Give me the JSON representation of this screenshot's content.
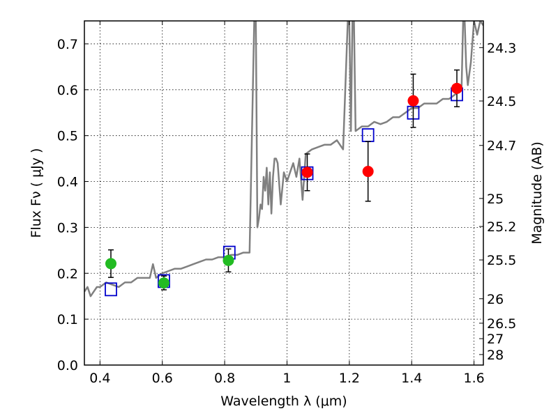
{
  "chart_data": {
    "type": "scatter",
    "title": "",
    "xlabel": "Wavelength  λ (μm)",
    "ylabel": "Flux  Fν  ( μJy )",
    "y2label": "Magnitude (AB)",
    "xlim": [
      0.35,
      1.63
    ],
    "ylim": [
      0.0,
      0.75
    ],
    "grid": true,
    "x_ticks": [
      "0.4",
      "0.6",
      "0.8",
      "1",
      "1.2",
      "1.4",
      "1.6"
    ],
    "x_tick_values": [
      0.4,
      0.6,
      0.8,
      1.0,
      1.2,
      1.4,
      1.6
    ],
    "y_ticks": [
      "0.0",
      "0.1",
      "0.2",
      "0.3",
      "0.4",
      "0.5",
      "0.6",
      "0.7"
    ],
    "y_tick_values": [
      0.0,
      0.1,
      0.2,
      0.3,
      0.4,
      0.5,
      0.6,
      0.7
    ],
    "y2_ticks": [
      "24.3",
      "24.5",
      "24.7",
      "25",
      "25.2",
      "25.5",
      "26",
      "26.5",
      "27",
      "28"
    ],
    "y2_tick_values": [
      24.3,
      24.5,
      24.7,
      25.0,
      25.2,
      25.5,
      26.0,
      26.5,
      27.0,
      28.0
    ],
    "series": [
      {
        "kind": "line",
        "color": "#808080",
        "x": [
          0.35,
          0.36,
          0.37,
          0.38,
          0.39,
          0.4,
          0.42,
          0.44,
          0.46,
          0.48,
          0.5,
          0.52,
          0.54,
          0.56,
          0.57,
          0.58,
          0.6,
          0.62,
          0.64,
          0.66,
          0.68,
          0.7,
          0.72,
          0.74,
          0.76,
          0.78,
          0.8,
          0.82,
          0.84,
          0.86,
          0.88,
          0.895,
          0.9,
          0.905,
          0.91,
          0.915,
          0.92,
          0.925,
          0.93,
          0.935,
          0.94,
          0.945,
          0.95,
          0.955,
          0.96,
          0.965,
          0.97,
          0.98,
          0.99,
          1.0,
          1.01,
          1.02,
          1.03,
          1.04,
          1.05,
          1.06,
          1.08,
          1.1,
          1.12,
          1.14,
          1.16,
          1.18,
          1.195,
          1.2,
          1.205,
          1.21,
          1.215,
          1.22,
          1.24,
          1.26,
          1.28,
          1.3,
          1.32,
          1.34,
          1.36,
          1.38,
          1.4,
          1.42,
          1.44,
          1.46,
          1.48,
          1.5,
          1.52,
          1.54,
          1.56,
          1.565,
          1.57,
          1.575,
          1.58,
          1.59,
          1.6,
          1.61,
          1.62,
          1.63
        ],
        "y": [
          0.16,
          0.17,
          0.15,
          0.16,
          0.17,
          0.17,
          0.18,
          0.175,
          0.17,
          0.18,
          0.18,
          0.19,
          0.19,
          0.19,
          0.22,
          0.19,
          0.2,
          0.205,
          0.21,
          0.21,
          0.215,
          0.22,
          0.225,
          0.23,
          0.23,
          0.235,
          0.235,
          0.24,
          0.24,
          0.245,
          0.245,
          0.75,
          0.75,
          0.3,
          0.32,
          0.35,
          0.34,
          0.41,
          0.38,
          0.43,
          0.35,
          0.42,
          0.33,
          0.41,
          0.45,
          0.45,
          0.44,
          0.35,
          0.42,
          0.4,
          0.42,
          0.44,
          0.41,
          0.45,
          0.36,
          0.46,
          0.47,
          0.475,
          0.48,
          0.48,
          0.49,
          0.47,
          0.75,
          0.75,
          0.51,
          0.75,
          0.75,
          0.51,
          0.52,
          0.52,
          0.53,
          0.525,
          0.53,
          0.54,
          0.54,
          0.55,
          0.56,
          0.56,
          0.57,
          0.57,
          0.57,
          0.58,
          0.58,
          0.59,
          0.6,
          0.75,
          0.75,
          0.65,
          0.61,
          0.66,
          0.75,
          0.72,
          0.75,
          0.74
        ]
      },
      {
        "kind": "marker",
        "marker": "square",
        "color": "#0000cc",
        "x": [
          0.435,
          0.605,
          0.815,
          1.065,
          1.26,
          1.405,
          1.545
        ],
        "y": [
          0.165,
          0.183,
          0.245,
          0.418,
          0.501,
          0.55,
          0.59
        ]
      },
      {
        "kind": "marker",
        "marker": "circle",
        "color": "#22bb22",
        "x": [
          0.435,
          0.605,
          0.812
        ],
        "y": [
          0.221,
          0.179,
          0.228
        ],
        "yerr_low": [
          0.03,
          0.015,
          0.025
        ],
        "yerr_high": [
          0.03,
          0.015,
          0.025
        ]
      },
      {
        "kind": "marker",
        "marker": "circle",
        "color": "#ff0000",
        "x": [
          1.065,
          1.26,
          1.405,
          1.545
        ],
        "y": [
          0.42,
          0.422,
          0.576,
          0.603
        ],
        "yerr_low": [
          0.04,
          0.065,
          0.058,
          0.04
        ],
        "yerr_high": [
          0.04,
          0.065,
          0.058,
          0.04
        ]
      }
    ]
  }
}
